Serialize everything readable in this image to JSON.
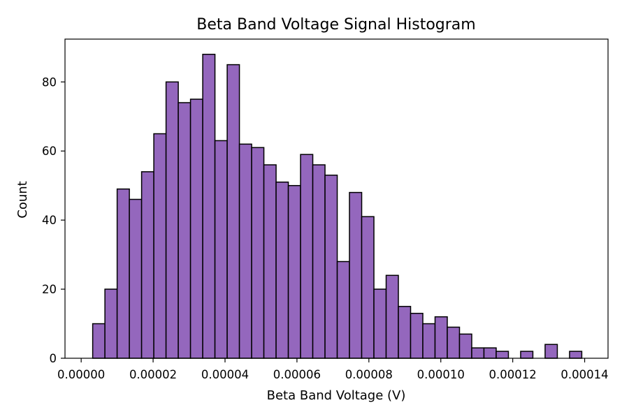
{
  "chart_data": {
    "type": "bar",
    "title": "Beta Band Voltage Signal Histogram",
    "xlabel": "Beta Band Voltage (V)",
    "ylabel": "Count",
    "bar_color": "#9467bd",
    "edge_color": "#000000",
    "xlim": [
      -4.5e-06,
      0.0001465
    ],
    "ylim": [
      0,
      92.4
    ],
    "xticks": [
      0.0,
      2e-05,
      4e-05,
      6e-05,
      8e-05,
      0.0001,
      0.00012,
      0.00014
    ],
    "xtick_labels": [
      "0.00000",
      "0.00002",
      "0.00004",
      "0.00006",
      "0.00008",
      "0.00010",
      "0.00012",
      "0.00014"
    ],
    "yticks": [
      0,
      20,
      40,
      60,
      80
    ],
    "ytick_labels": [
      "0",
      "20",
      "40",
      "60",
      "80"
    ],
    "bin_start": 3.2e-06,
    "bin_width": 3.4e-06,
    "values": [
      10,
      20,
      49,
      46,
      54,
      65,
      80,
      74,
      75,
      88,
      63,
      85,
      62,
      61,
      56,
      51,
      50,
      59,
      56,
      53,
      28,
      48,
      41,
      20,
      24,
      15,
      13,
      10,
      12,
      9,
      7,
      3,
      3,
      2,
      0,
      2,
      0,
      4,
      0,
      2
    ]
  }
}
